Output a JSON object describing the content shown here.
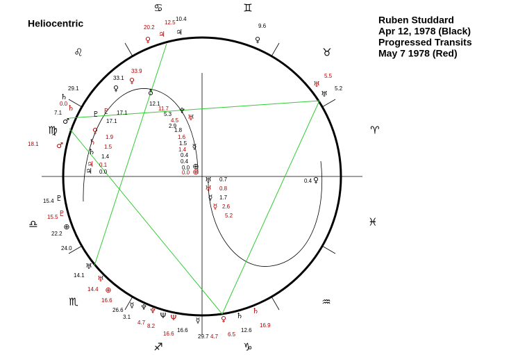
{
  "title": "Heliocentric",
  "header": [
    "Ruben Studdard",
    "Apr 12, 1978 (Black)",
    "Progressed Transits",
    "May 7 1978 (Red)"
  ],
  "signs": [
    "♋",
    "♊",
    "♌",
    "♉",
    "♍",
    "♈",
    "♎",
    "♓",
    "♏",
    "♒",
    "♐",
    "♑"
  ],
  "colors": {
    "black": "#000000",
    "red": "#b00000",
    "aspect": "#33cc33"
  },
  "labels": [
    {
      "text": "10.4",
      "color": "black"
    },
    {
      "text": "9.6",
      "color": "black"
    },
    {
      "text": "5.2",
      "color": "black"
    },
    {
      "text": "29.1",
      "color": "black"
    },
    {
      "text": "33.1",
      "color": "black"
    },
    {
      "text": "7.1",
      "color": "black"
    },
    {
      "text": "12.1",
      "color": "black"
    },
    {
      "text": "17.1",
      "color": "black"
    },
    {
      "text": "17.1",
      "color": "black"
    },
    {
      "text": "5.3",
      "color": "black"
    },
    {
      "text": "2.9",
      "color": "black"
    },
    {
      "text": "1.8",
      "color": "black"
    },
    {
      "text": "1.5",
      "color": "black"
    },
    {
      "text": "0.4",
      "color": "black"
    },
    {
      "text": "0.4",
      "color": "black"
    },
    {
      "text": "0.0",
      "color": "black"
    },
    {
      "text": "1.4",
      "color": "black"
    },
    {
      "text": "0.0",
      "color": "black"
    },
    {
      "text": "0.4",
      "color": "black"
    },
    {
      "text": "0.7",
      "color": "black"
    },
    {
      "text": "1.7",
      "color": "black"
    },
    {
      "text": "15.4",
      "color": "black"
    },
    {
      "text": "22.2",
      "color": "black"
    },
    {
      "text": "24.0",
      "color": "black"
    },
    {
      "text": "14.1",
      "color": "black"
    },
    {
      "text": "26.6",
      "color": "black"
    },
    {
      "text": "3.1",
      "color": "black"
    },
    {
      "text": "16.6",
      "color": "black"
    },
    {
      "text": "29.7",
      "color": "black"
    },
    {
      "text": "12.6",
      "color": "black"
    },
    {
      "text": "20.2",
      "color": "red"
    },
    {
      "text": "12.5",
      "color": "red"
    },
    {
      "text": "33.9",
      "color": "red"
    },
    {
      "text": "0.0",
      "color": "red"
    },
    {
      "text": "11.7",
      "color": "red"
    },
    {
      "text": "4.5",
      "color": "red"
    },
    {
      "text": "1.6",
      "color": "red"
    },
    {
      "text": "1.4",
      "color": "red"
    },
    {
      "text": "0.0",
      "color": "red"
    },
    {
      "text": "1.9",
      "color": "red"
    },
    {
      "text": "1.5",
      "color": "red"
    },
    {
      "text": "0.1",
      "color": "red"
    },
    {
      "text": "18.1",
      "color": "red"
    },
    {
      "text": "15.5",
      "color": "red"
    },
    {
      "text": "0.8",
      "color": "red"
    },
    {
      "text": "2.6",
      "color": "red"
    },
    {
      "text": "5.2",
      "color": "red"
    },
    {
      "text": "5.5",
      "color": "red"
    },
    {
      "text": "14.4",
      "color": "red"
    },
    {
      "text": "16.6",
      "color": "red"
    },
    {
      "text": "4.7",
      "color": "red"
    },
    {
      "text": "8.2",
      "color": "red"
    },
    {
      "text": "16.6",
      "color": "red"
    },
    {
      "text": "4.7",
      "color": "red"
    },
    {
      "text": "6.5",
      "color": "red"
    },
    {
      "text": "16.9",
      "color": "red"
    }
  ],
  "glyphs": [
    {
      "text": "♀",
      "color": "red"
    },
    {
      "text": "♃",
      "color": "red"
    },
    {
      "text": "♃",
      "color": "black"
    },
    {
      "text": "♀",
      "color": "black"
    },
    {
      "text": "♅",
      "color": "red"
    },
    {
      "text": "♅",
      "color": "black"
    },
    {
      "text": "♄",
      "color": "black"
    },
    {
      "text": "♄",
      "color": "red"
    },
    {
      "text": "♂",
      "color": "black"
    },
    {
      "text": "♂",
      "color": "red"
    },
    {
      "text": "♀",
      "color": "red"
    },
    {
      "text": "♀",
      "color": "black"
    },
    {
      "text": "♇",
      "color": "red"
    },
    {
      "text": "♇",
      "color": "black"
    },
    {
      "text": "♀",
      "color": "red"
    },
    {
      "text": "♄",
      "color": "red"
    },
    {
      "text": "♄",
      "color": "black"
    },
    {
      "text": "♃",
      "color": "red"
    },
    {
      "text": "♃",
      "color": "black"
    },
    {
      "text": "♁",
      "color": "black"
    },
    {
      "text": "♆",
      "color": "black"
    },
    {
      "text": "♅",
      "color": "red"
    },
    {
      "text": "☿",
      "color": "black"
    },
    {
      "text": "⊕",
      "color": "black"
    },
    {
      "text": "⊕",
      "color": "red"
    },
    {
      "text": "♅",
      "color": "black"
    },
    {
      "text": "♅",
      "color": "red"
    },
    {
      "text": "☿",
      "color": "black"
    },
    {
      "text": "☿",
      "color": "red"
    },
    {
      "text": "♀",
      "color": "black"
    },
    {
      "text": "♇",
      "color": "black"
    },
    {
      "text": "♇",
      "color": "red"
    },
    {
      "text": "⊕",
      "color": "black"
    },
    {
      "text": "♅",
      "color": "black"
    },
    {
      "text": "♅",
      "color": "red"
    },
    {
      "text": "⊕",
      "color": "red"
    },
    {
      "text": "☿",
      "color": "black"
    },
    {
      "text": "♆",
      "color": "black"
    },
    {
      "text": "♆",
      "color": "red"
    },
    {
      "text": "Ψ",
      "color": "black"
    },
    {
      "text": "Ψ",
      "color": "red"
    },
    {
      "text": "☿",
      "color": "black"
    },
    {
      "text": "♀",
      "color": "red"
    },
    {
      "text": "♄",
      "color": "black"
    },
    {
      "text": "♄",
      "color": "red"
    }
  ]
}
